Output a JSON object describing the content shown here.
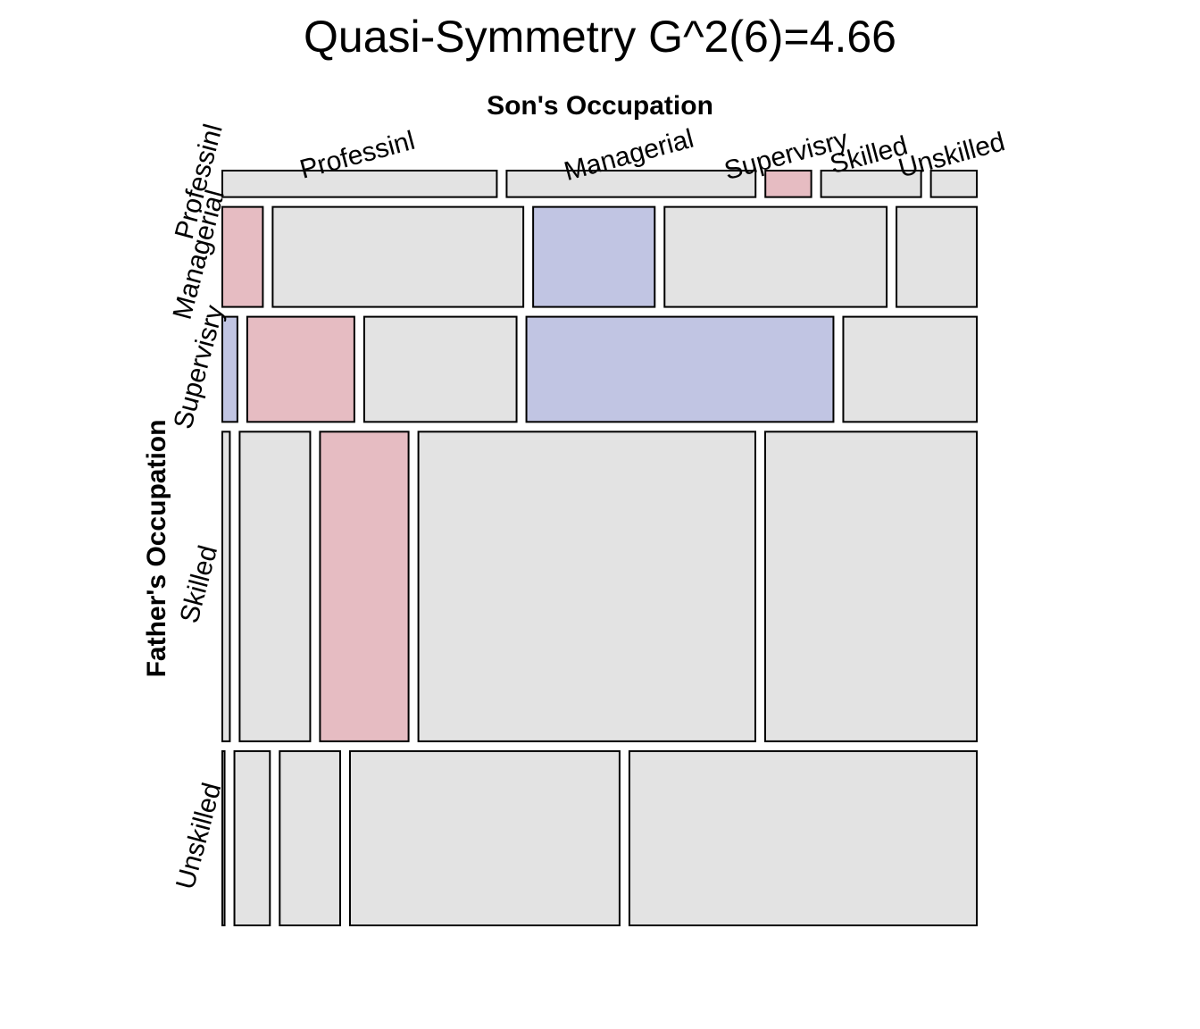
{
  "chart_data": {
    "type": "mosaic",
    "title": "Quasi-Symmetry G^2(6)=4.66",
    "xlabel": "Son's Occupation",
    "ylabel": "Father's Occupation",
    "categories": [
      "Professinl",
      "Managerial",
      "Supervisry",
      "Skilled",
      "Unskilled"
    ],
    "rows": [
      {
        "name": "Professinl",
        "total": 0.036,
        "shares": [
          0.365,
          0.331,
          0.061,
          0.133,
          0.061
        ],
        "fills": [
          "neutral",
          "neutral",
          "positive",
          "neutral",
          "neutral"
        ]
      },
      {
        "name": "Managerial",
        "total": 0.136,
        "shares": [
          0.054,
          0.334,
          0.162,
          0.296,
          0.107
        ],
        "fills": [
          "positive",
          "neutral",
          "negative",
          "neutral",
          "neutral"
        ]
      },
      {
        "name": "Supervisry",
        "total": 0.143,
        "shares": [
          0.02,
          0.142,
          0.202,
          0.407,
          0.177
        ],
        "fills": [
          "negative",
          "positive",
          "neutral",
          "negative",
          "neutral"
        ]
      },
      {
        "name": "Skilled",
        "total": 0.421,
        "shares": [
          0.01,
          0.094,
          0.118,
          0.449,
          0.282
        ],
        "fills": [
          "neutral",
          "neutral",
          "positive",
          "neutral",
          "neutral"
        ]
      },
      {
        "name": "Unskilled",
        "total": 0.237,
        "shares": [
          0.003,
          0.047,
          0.08,
          0.357,
          0.46
        ],
        "fills": [
          "neutral",
          "neutral",
          "neutral",
          "neutral",
          "neutral"
        ]
      }
    ],
    "colors": {
      "neutral": "#e3e3e3",
      "positive": "#e6bcc2",
      "negative": "#c1c5e3",
      "stroke": "#000000"
    }
  }
}
